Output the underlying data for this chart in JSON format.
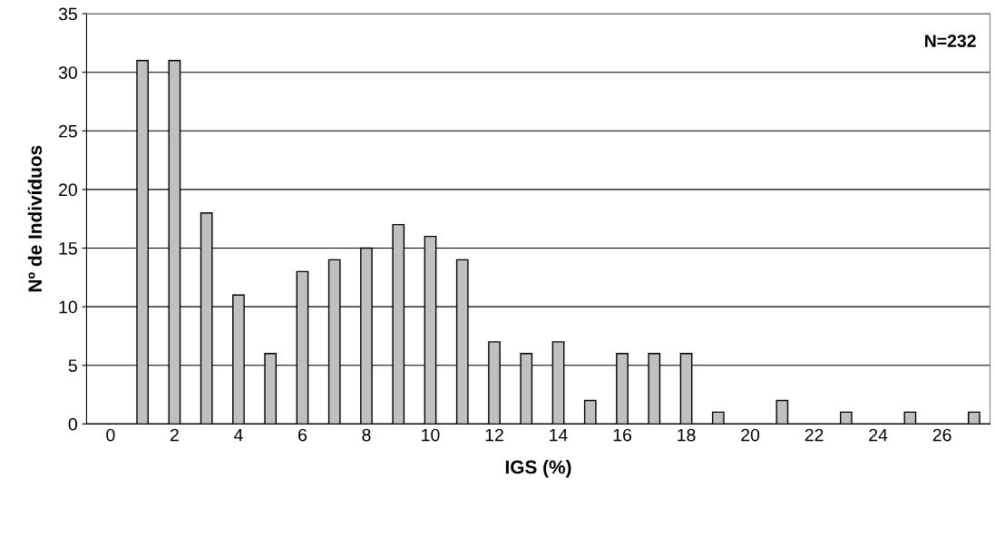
{
  "chart_data": {
    "type": "bar",
    "xlabel": "IGS (%)",
    "ylabel": "Nº de Indivíduos",
    "categories": [
      "0",
      null,
      "2",
      null,
      "4",
      null,
      "6",
      null,
      "8",
      null,
      "10",
      null,
      "12",
      null,
      "14",
      null,
      "16",
      null,
      "18",
      null,
      "20",
      null,
      "22",
      null,
      "24",
      null,
      "26",
      null
    ],
    "values": [
      0,
      31,
      31,
      18,
      11,
      6,
      13,
      14,
      15,
      17,
      16,
      14,
      7,
      6,
      7,
      2,
      6,
      6,
      6,
      1,
      0,
      2,
      0,
      1,
      0,
      1,
      0,
      1
    ],
    "color": "#c0c0c0",
    "ylim": [
      0,
      35
    ],
    "yticks": [
      0,
      5,
      10,
      15,
      20,
      25,
      30,
      35
    ],
    "grid": "y",
    "legend": false,
    "annotations": [
      "N=232"
    ]
  }
}
